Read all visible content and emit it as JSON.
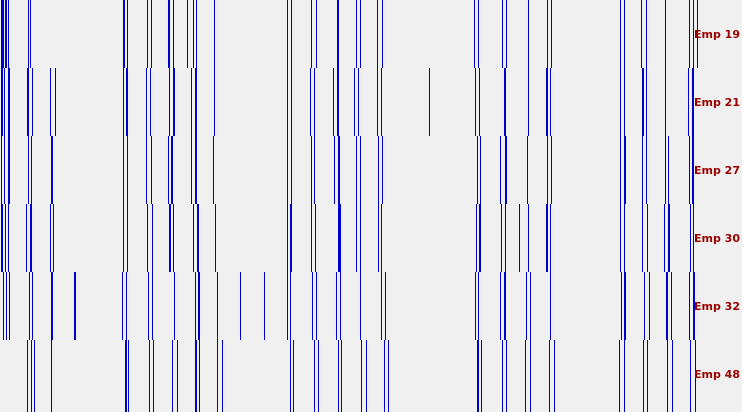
{
  "colors": {
    "background": "#f0f0f0",
    "bar": "#0000cc",
    "label": "#990000"
  },
  "rows": [
    {
      "label": "Emp 19",
      "ticks": [
        [
          1,
          3
        ],
        [
          5,
          2
        ],
        [
          8,
          1
        ],
        [
          28,
          1
        ],
        [
          30,
          1
        ],
        [
          123,
          2
        ],
        [
          127,
          1
        ],
        [
          147,
          1
        ],
        [
          151,
          1
        ],
        [
          168,
          2
        ],
        [
          173,
          1
        ],
        [
          187,
          1
        ],
        [
          193,
          1
        ],
        [
          196,
          1
        ],
        [
          214,
          1
        ],
        [
          287,
          1
        ],
        [
          291,
          1
        ],
        [
          311,
          1
        ],
        [
          316,
          1
        ],
        [
          337,
          2
        ],
        [
          356,
          1
        ],
        [
          360,
          1
        ],
        [
          377,
          1
        ],
        [
          382,
          1
        ],
        [
          474,
          1
        ],
        [
          478,
          1
        ],
        [
          502,
          1
        ],
        [
          506,
          1
        ],
        [
          528,
          1
        ],
        [
          547,
          1
        ],
        [
          551,
          1
        ],
        [
          620,
          1
        ],
        [
          624,
          1
        ],
        [
          641,
          1
        ],
        [
          646,
          1
        ],
        [
          665,
          1
        ],
        [
          689,
          1
        ],
        [
          693,
          1
        ],
        [
          697,
          1
        ]
      ]
    },
    {
      "label": "Emp 21",
      "ticks": [
        [
          1,
          2
        ],
        [
          4,
          1
        ],
        [
          8,
          2
        ],
        [
          27,
          2
        ],
        [
          32,
          1
        ],
        [
          50,
          1
        ],
        [
          55,
          1
        ],
        [
          123,
          1
        ],
        [
          126,
          2
        ],
        [
          146,
          1
        ],
        [
          150,
          1
        ],
        [
          169,
          1
        ],
        [
          173,
          2
        ],
        [
          191,
          1
        ],
        [
          195,
          2
        ],
        [
          214,
          1
        ],
        [
          287,
          1
        ],
        [
          291,
          1
        ],
        [
          310,
          1
        ],
        [
          314,
          1
        ],
        [
          333,
          1
        ],
        [
          337,
          2
        ],
        [
          354,
          1
        ],
        [
          358,
          1
        ],
        [
          377,
          1
        ],
        [
          381,
          1
        ],
        [
          429,
          1
        ],
        [
          475,
          1
        ],
        [
          479,
          1
        ],
        [
          504,
          2
        ],
        [
          528,
          1
        ],
        [
          546,
          2
        ],
        [
          550,
          1
        ],
        [
          620,
          1
        ],
        [
          624,
          1
        ],
        [
          642,
          2
        ],
        [
          646,
          1
        ],
        [
          665,
          1
        ],
        [
          688,
          1
        ],
        [
          692,
          2
        ]
      ]
    },
    {
      "label": "Emp 27",
      "ticks": [
        [
          1,
          1
        ],
        [
          4,
          1
        ],
        [
          8,
          2
        ],
        [
          28,
          1
        ],
        [
          31,
          1
        ],
        [
          51,
          2
        ],
        [
          123,
          1
        ],
        [
          127,
          1
        ],
        [
          146,
          1
        ],
        [
          151,
          1
        ],
        [
          168,
          1
        ],
        [
          171,
          2
        ],
        [
          191,
          1
        ],
        [
          195,
          2
        ],
        [
          213,
          1
        ],
        [
          287,
          1
        ],
        [
          291,
          1
        ],
        [
          311,
          1
        ],
        [
          314,
          1
        ],
        [
          334,
          1
        ],
        [
          338,
          2
        ],
        [
          356,
          1
        ],
        [
          360,
          1
        ],
        [
          378,
          1
        ],
        [
          382,
          1
        ],
        [
          477,
          1
        ],
        [
          480,
          1
        ],
        [
          500,
          1
        ],
        [
          505,
          2
        ],
        [
          527,
          1
        ],
        [
          547,
          1
        ],
        [
          551,
          1
        ],
        [
          620,
          1
        ],
        [
          624,
          2
        ],
        [
          642,
          1
        ],
        [
          646,
          1
        ],
        [
          665,
          1
        ],
        [
          668,
          1
        ],
        [
          689,
          1
        ],
        [
          692,
          2
        ]
      ]
    },
    {
      "label": "Emp 30",
      "ticks": [
        [
          1,
          2
        ],
        [
          5,
          1
        ],
        [
          8,
          1
        ],
        [
          26,
          1
        ],
        [
          30,
          2
        ],
        [
          50,
          1
        ],
        [
          53,
          1
        ],
        [
          123,
          1
        ],
        [
          127,
          1
        ],
        [
          147,
          1
        ],
        [
          152,
          1
        ],
        [
          169,
          2
        ],
        [
          173,
          1
        ],
        [
          193,
          1
        ],
        [
          197,
          2
        ],
        [
          215,
          1
        ],
        [
          287,
          1
        ],
        [
          290,
          2
        ],
        [
          311,
          1
        ],
        [
          315,
          1
        ],
        [
          338,
          3
        ],
        [
          356,
          1
        ],
        [
          360,
          1
        ],
        [
          378,
          1
        ],
        [
          381,
          1
        ],
        [
          476,
          1
        ],
        [
          479,
          2
        ],
        [
          501,
          1
        ],
        [
          505,
          1
        ],
        [
          519,
          1
        ],
        [
          528,
          1
        ],
        [
          546,
          2
        ],
        [
          550,
          1
        ],
        [
          620,
          1
        ],
        [
          624,
          1
        ],
        [
          642,
          1
        ],
        [
          647,
          1
        ],
        [
          664,
          1
        ],
        [
          668,
          2
        ],
        [
          690,
          1
        ],
        [
          693,
          1
        ]
      ]
    },
    {
      "label": "Emp 32",
      "ticks": [
        [
          3,
          1
        ],
        [
          6,
          1
        ],
        [
          9,
          1
        ],
        [
          29,
          1
        ],
        [
          32,
          1
        ],
        [
          51,
          2
        ],
        [
          74,
          2
        ],
        [
          122,
          1
        ],
        [
          126,
          1
        ],
        [
          148,
          1
        ],
        [
          152,
          1
        ],
        [
          174,
          1
        ],
        [
          195,
          1
        ],
        [
          198,
          2
        ],
        [
          217,
          1
        ],
        [
          240,
          1
        ],
        [
          264,
          1
        ],
        [
          287,
          1
        ],
        [
          290,
          1
        ],
        [
          312,
          1
        ],
        [
          316,
          1
        ],
        [
          336,
          1
        ],
        [
          340,
          1
        ],
        [
          360,
          1
        ],
        [
          381,
          1
        ],
        [
          385,
          1
        ],
        [
          475,
          1
        ],
        [
          478,
          1
        ],
        [
          500,
          1
        ],
        [
          504,
          2
        ],
        [
          526,
          1
        ],
        [
          530,
          1
        ],
        [
          550,
          1
        ],
        [
          621,
          1
        ],
        [
          624,
          2
        ],
        [
          644,
          1
        ],
        [
          649,
          1
        ],
        [
          666,
          2
        ],
        [
          671,
          1
        ],
        [
          689,
          1
        ],
        [
          693,
          2
        ]
      ]
    },
    {
      "label": "Emp 48",
      "ticks": [
        [
          27,
          1
        ],
        [
          31,
          1
        ],
        [
          34,
          1
        ],
        [
          51,
          1
        ],
        [
          125,
          2
        ],
        [
          128,
          1
        ],
        [
          149,
          1
        ],
        [
          153,
          1
        ],
        [
          172,
          1
        ],
        [
          177,
          1
        ],
        [
          195,
          2
        ],
        [
          199,
          1
        ],
        [
          217,
          1
        ],
        [
          222,
          1
        ],
        [
          290,
          1
        ],
        [
          293,
          1
        ],
        [
          314,
          1
        ],
        [
          318,
          1
        ],
        [
          338,
          1
        ],
        [
          341,
          1
        ],
        [
          361,
          1
        ],
        [
          366,
          1
        ],
        [
          384,
          1
        ],
        [
          388,
          1
        ],
        [
          477,
          2
        ],
        [
          481,
          1
        ],
        [
          502,
          1
        ],
        [
          506,
          1
        ],
        [
          525,
          1
        ],
        [
          530,
          1
        ],
        [
          549,
          1
        ],
        [
          554,
          1
        ],
        [
          619,
          1
        ],
        [
          624,
          1
        ],
        [
          643,
          1
        ],
        [
          647,
          1
        ],
        [
          667,
          1
        ],
        [
          672,
          1
        ],
        [
          690,
          1
        ],
        [
          695,
          1
        ]
      ]
    }
  ]
}
